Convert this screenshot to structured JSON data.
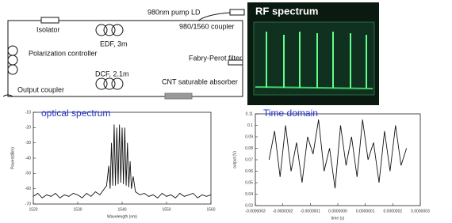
{
  "diagram": {
    "labels": {
      "pump": "980nm pump LD",
      "isolator": "Isolator",
      "coupler": "980/1560 coupler",
      "edf": "EDF, 3m",
      "polarization": "Polarization controller",
      "filter": "Fabry-Perot filter",
      "output": "Output coupler",
      "dcf": "DCF, 2.1m",
      "cnt": "CNT saturable absorber"
    }
  },
  "rf_photo": {
    "title": "RF spectrum"
  },
  "chart_data": [
    {
      "type": "line",
      "title": "optical spectrum",
      "xlabel": "Wavelength (nm)",
      "ylabel": "Power(dBm)",
      "color": "#111111",
      "x": [
        1520,
        1521,
        1522,
        1523,
        1524,
        1525,
        1526,
        1527,
        1528,
        1529,
        1530,
        1531,
        1532,
        1533,
        1534,
        1535,
        1536,
        1536.5,
        1537,
        1537.3,
        1537.6,
        1537.9,
        1538.2,
        1538.5,
        1538.8,
        1539.1,
        1539.4,
        1539.7,
        1540,
        1540.3,
        1540.6,
        1540.9,
        1541.2,
        1541.5,
        1541.8,
        1542.1,
        1542.5,
        1543,
        1544,
        1545,
        1546,
        1547,
        1548,
        1549,
        1550,
        1551,
        1552,
        1553,
        1554,
        1555,
        1556,
        1557,
        1558,
        1559,
        1560
      ],
      "values": [
        -65,
        -63,
        -66,
        -64,
        -65,
        -63,
        -66,
        -64,
        -65,
        -63,
        -64,
        -66,
        -63,
        -65,
        -62,
        -64,
        -60,
        -58,
        -45,
        -60,
        -30,
        -58,
        -18,
        -58,
        -20,
        -57,
        -18,
        -56,
        -20,
        -57,
        -20,
        -58,
        -30,
        -59,
        -42,
        -60,
        -52,
        -62,
        -64,
        -63,
        -65,
        -64,
        -66,
        -63,
        -65,
        -64,
        -66,
        -63,
        -65,
        -64,
        -63,
        -66,
        -64,
        -65,
        -64
      ],
      "xlim": [
        1520,
        1560
      ],
      "ylim": [
        -70,
        -10
      ],
      "xticks": [
        1520,
        1530,
        1540,
        1550,
        1560
      ],
      "yticks": [
        -10,
        -20,
        -30,
        -40,
        -50,
        -60,
        -70
      ]
    },
    {
      "type": "line",
      "title": "Time domain",
      "xlabel": "time (s)",
      "ylabel": "output (V)",
      "color": "#111111",
      "x": [
        -2.5e-07,
        -2.3e-07,
        -2.1e-07,
        -1.9e-07,
        -1.7e-07,
        -1.5e-07,
        -1.3e-07,
        -1.1e-07,
        -9e-08,
        -7e-08,
        -5e-08,
        -3e-08,
        -1e-08,
        1e-08,
        3e-08,
        5e-08,
        7e-08,
        9e-08,
        1.1e-07,
        1.3e-07,
        1.5e-07,
        1.7e-07,
        1.9e-07,
        2.1e-07,
        2.3e-07,
        2.5e-07
      ],
      "values": [
        0.07,
        0.095,
        0.055,
        0.1,
        0.06,
        0.085,
        0.05,
        0.09,
        0.075,
        0.105,
        0.06,
        0.08,
        0.045,
        0.1,
        0.065,
        0.09,
        0.055,
        0.105,
        0.07,
        0.085,
        0.05,
        0.095,
        0.06,
        0.1,
        0.065,
        0.08
      ],
      "xlim": [
        -3e-07,
        3e-07
      ],
      "ylim": [
        0.03,
        0.11
      ],
      "xticks": [
        {
          "value": -3e-07,
          "label": "-0.0000003"
        },
        {
          "value": -2e-07,
          "label": "-0.0000002"
        },
        {
          "value": -1e-07,
          "label": "-0.0000001"
        },
        {
          "value": 0,
          "label": "0.0000000"
        },
        {
          "value": 1e-07,
          "label": "0.0000001"
        },
        {
          "value": 2e-07,
          "label": "0.0000002"
        },
        {
          "value": 3e-07,
          "label": "0.0000003"
        }
      ],
      "yticks": [
        0.03,
        0.04,
        0.05,
        0.06,
        0.07,
        0.08,
        0.09,
        0.1,
        0.11
      ]
    }
  ]
}
